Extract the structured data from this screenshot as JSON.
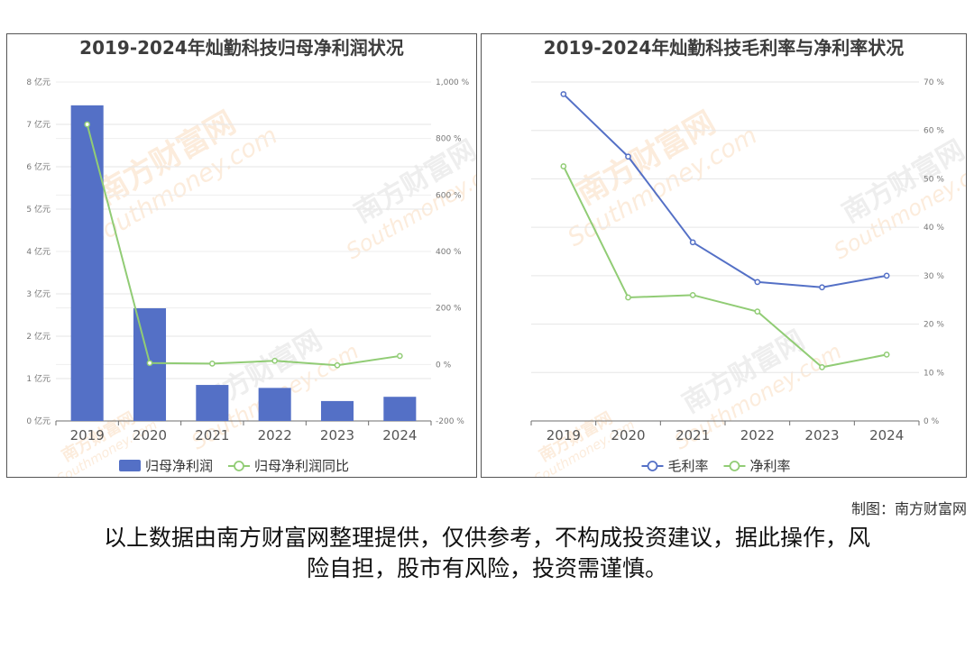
{
  "chart_data": [
    {
      "type": "bar+line",
      "title": "2019-2024年灿勤科技归母净利润状况",
      "categories": [
        "2019",
        "2020",
        "2021",
        "2022",
        "2023",
        "2024"
      ],
      "y_left": {
        "ylim": [
          0,
          8
        ],
        "ticks": [
          "0 亿元",
          "1 亿元",
          "2 亿元",
          "3 亿元",
          "4 亿元",
          "5 亿元",
          "6 亿元",
          "7 亿元",
          "8 亿元"
        ]
      },
      "y_right": {
        "ylim": [
          -200,
          1000
        ],
        "ticks": [
          "-200 %",
          "0 %",
          "200 %",
          "400 %",
          "600 %",
          "800 %",
          "1,000 %"
        ]
      },
      "series": [
        {
          "name": "归母净利润",
          "kind": "bar",
          "axis": "left",
          "color": "#5470c6",
          "values": [
            7.45,
            2.66,
            0.85,
            0.78,
            0.47,
            0.57
          ]
        },
        {
          "name": "归母净利润同比",
          "kind": "line",
          "axis": "right",
          "color": "#91cc75",
          "values": [
            850,
            5,
            3,
            13,
            -3,
            30
          ]
        }
      ],
      "grid": true,
      "legend": "bottom-center"
    },
    {
      "type": "line",
      "title": "2019-2024年灿勤科技毛利率与净利率状况",
      "categories": [
        "2019",
        "2020",
        "2021",
        "2022",
        "2023",
        "2024"
      ],
      "y_right": {
        "ylim": [
          0,
          70
        ],
        "ticks": [
          "0 %",
          "10 %",
          "20 %",
          "30 %",
          "40 %",
          "50 %",
          "60 %",
          "70 %"
        ]
      },
      "series": [
        {
          "name": "毛利率",
          "kind": "line",
          "axis": "right",
          "color": "#5470c6",
          "values": [
            67.5,
            54.6,
            36.9,
            28.7,
            27.6,
            30.0
          ]
        },
        {
          "name": "净利率",
          "kind": "line",
          "axis": "right",
          "color": "#91cc75",
          "values": [
            52.6,
            25.5,
            26.0,
            22.6,
            11.1,
            13.7
          ]
        }
      ],
      "grid": true,
      "legend": "bottom-center"
    }
  ],
  "footer": {
    "credit": "制图：南方财富网",
    "disclaimer_line1": "以上数据由南方财富网整理提供，仅供参考，不构成投资建议，据此操作，风",
    "disclaimer_line2": "险自担，股市有风险，投资需谨慎。"
  },
  "watermark": {
    "text": "南方财富网",
    "subtext": "Southmoney.com",
    "color": "#f6c89a"
  }
}
